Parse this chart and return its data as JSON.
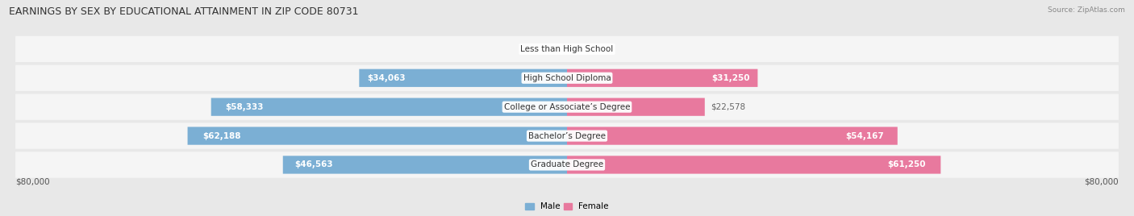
{
  "title": "EARNINGS BY SEX BY EDUCATIONAL ATTAINMENT IN ZIP CODE 80731",
  "source": "Source: ZipAtlas.com",
  "categories": [
    "Less than High School",
    "High School Diploma",
    "College or Associate’s Degree",
    "Bachelor’s Degree",
    "Graduate Degree"
  ],
  "male_values": [
    0,
    34063,
    58333,
    62188,
    46563
  ],
  "female_values": [
    0,
    31250,
    22578,
    54167,
    61250
  ],
  "male_color": "#7bafd4",
  "female_color": "#e8799e",
  "max_val": 80000,
  "bg_color": "#e8e8e8",
  "row_bg_color": "#f5f5f5",
  "title_fontsize": 9,
  "label_fontsize": 7.5,
  "axis_label_fontsize": 7.5
}
